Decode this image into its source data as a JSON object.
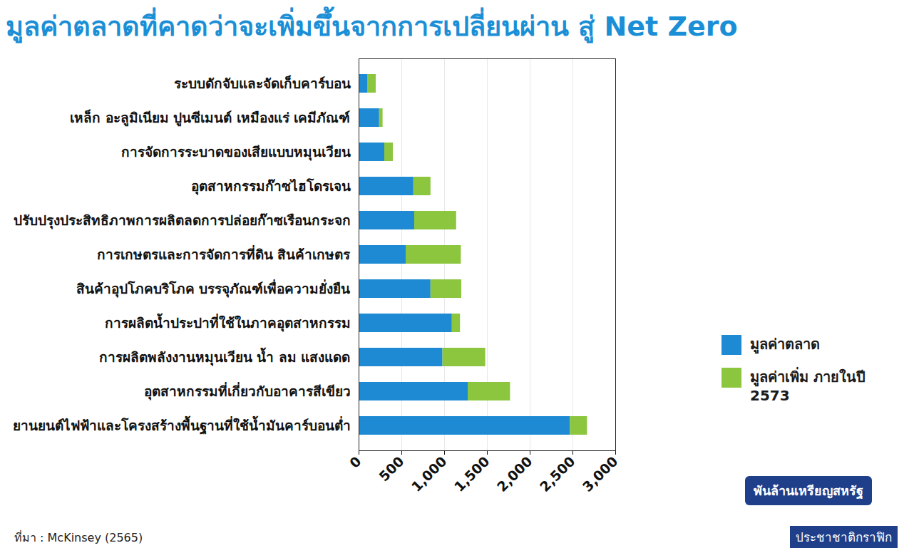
{
  "chart_data": {
    "type": "bar",
    "orientation": "horizontal",
    "stacked": true,
    "grid": true,
    "legend": "right",
    "title": "มูลค่าตลาดที่คาดว่าจะเพิ่มขึ้นจากการเปลี่ยนผ่าน สู่ Net Zero",
    "x_label": "พันล้านเหรียญสหรัฐ",
    "source": "ที่มา : McKinsey (2565)",
    "credit": "ประชาชาติกราฟิก",
    "categories": [
      "ระบบดักจับและจัดเก็บคาร์บอน",
      "เหล็ก อะลูมิเนียม ปูนซีเมนต์ เหมืองแร่ เคมีภัณฑ์",
      "การจัดการระบาดของเสียแบบหมุนเวียน",
      "อุตสาหกรรมก๊าซไฮโดรเจน",
      "ปรับปรุงประสิทธิภาพการผลิตลดการปล่อยก๊าซเรือนกระจก",
      "การเกษตรและการจัดการที่ดิน สินค้าเกษตร",
      "สินค้าอุปโภคบริโภค บรรจุภัณฑ์เพื่อความยั่งยืน",
      "การผลิตน้ำประปาที่ใช้ในภาคอุตสาหกรรม",
      "การผลิตพลังงานหมุนเวียน น้ำ ลม แสงแดด",
      "อุตสาหกรรมที่เกี่ยวกับอาคารสีเขียว",
      "ยานยนต์ไฟฟ้าและโครงสร้างพื้นฐานที่ใช้น้ำมันคาร์บอนต่ำ"
    ],
    "series": [
      {
        "name": "มูลค่าตลาด",
        "color": "#1e8ad3",
        "values": [
          100,
          240,
          300,
          640,
          650,
          550,
          840,
          1090,
          980,
          1275,
          2470
        ]
      },
      {
        "name": "มูลค่าเพิ่ม ภายในปี 2573",
        "color": "#8cc63f",
        "values": [
          100,
          40,
          100,
          200,
          490,
          645,
          360,
          95,
          500,
          495,
          200
        ]
      }
    ],
    "xlim": [
      0,
      3000
    ],
    "xticks": [
      0,
      500,
      {
        "value": 1000,
        "label": "1,000"
      },
      {
        "value": 1500,
        "label": "1,500"
      },
      {
        "value": 2000,
        "label": "2,000"
      },
      {
        "value": 2500,
        "label": "2,500"
      },
      {
        "value": 3000,
        "label": "3,000"
      }
    ]
  }
}
